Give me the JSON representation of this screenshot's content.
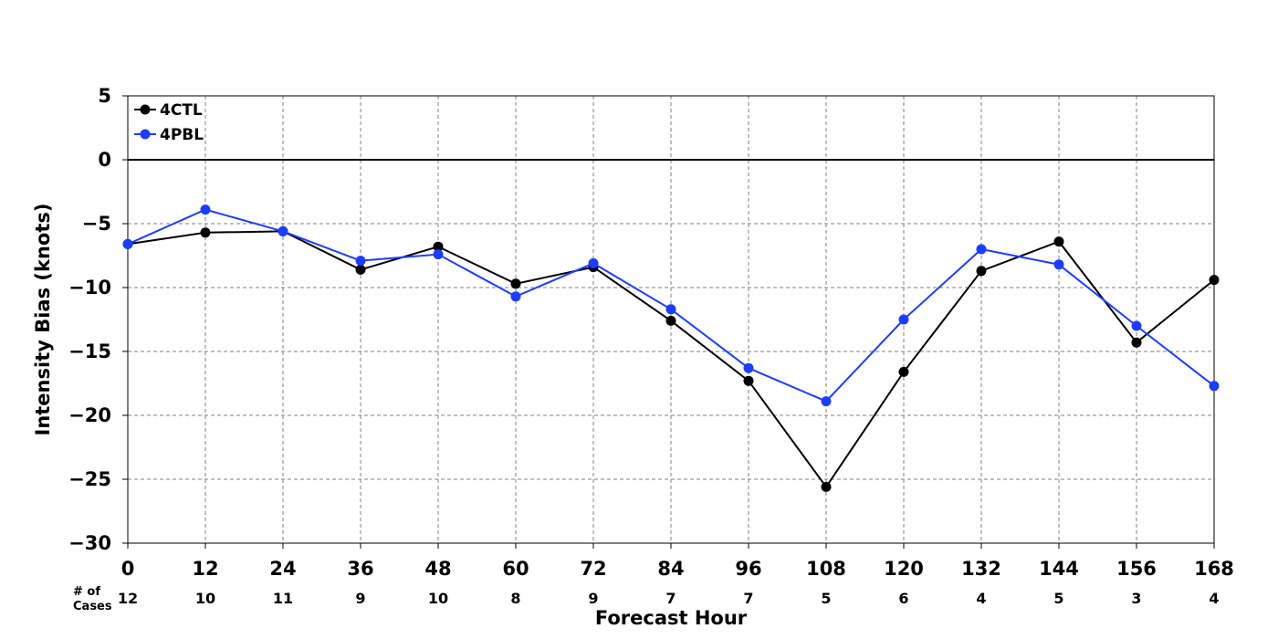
{
  "chart_data": {
    "type": "line",
    "title": "",
    "xlabel": "Forecast Hour",
    "ylabel": "Intensity Bias (knots)",
    "x": [
      0,
      12,
      24,
      36,
      48,
      60,
      72,
      84,
      96,
      108,
      120,
      132,
      144,
      156,
      168
    ],
    "xlim": [
      0,
      168
    ],
    "ylim": [
      -30,
      5
    ],
    "yticks": [
      5,
      0,
      -5,
      -10,
      -15,
      -20,
      -25,
      -30
    ],
    "ytick_labels": [
      "5",
      "0",
      "−5",
      "−10",
      "−15",
      "−20",
      "−25",
      "−30"
    ],
    "grid": true,
    "reference_line": 0,
    "legend_position": "top-left",
    "cases_label_line1": "# of",
    "cases_label_line2": "Cases",
    "cases": [
      12,
      10,
      11,
      9,
      10,
      8,
      9,
      7,
      7,
      5,
      6,
      4,
      5,
      3,
      4
    ],
    "series": [
      {
        "name": "4CTL",
        "color": "#000000",
        "values": [
          -6.6,
          -5.7,
          -5.6,
          -8.6,
          -6.8,
          -9.7,
          -8.4,
          -12.6,
          -17.3,
          -25.6,
          -16.6,
          -8.7,
          -6.4,
          -14.3,
          -9.4
        ]
      },
      {
        "name": "4PBL",
        "color": "#1f3dff",
        "values": [
          -6.6,
          -3.9,
          -5.6,
          -7.9,
          -7.4,
          -10.7,
          -8.1,
          -11.7,
          -16.3,
          -18.9,
          -12.5,
          -7.0,
          -8.2,
          -13.0,
          -17.7
        ]
      }
    ]
  }
}
